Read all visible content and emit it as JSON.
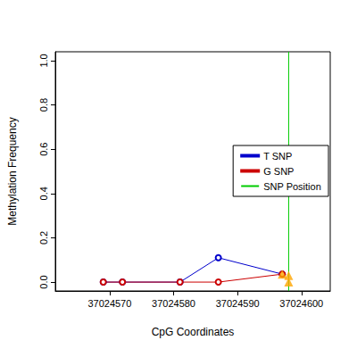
{
  "chart_data": {
    "type": "line",
    "x_label": "CpG Coordinates",
    "y_label": "Methylation Frequency",
    "xlim": [
      37024561.5,
      37024604.5
    ],
    "xticks": [
      37024570,
      37024580,
      37024590,
      37024600
    ],
    "ylim": [
      -0.04,
      1.04
    ],
    "yticks": [
      {
        "value": 0,
        "label": "0.0"
      },
      0.2,
      0.4,
      0.6,
      0.8,
      {
        "value": 1,
        "label": "1.0"
      }
    ],
    "grid": false,
    "legend": "right",
    "series": [
      {
        "name": "T SNP",
        "color": "#0000cc",
        "type": "line",
        "marker": "open_circle",
        "x": [
          37024569,
          37024572,
          37024581,
          37024587,
          37024597
        ],
        "values": [
          0,
          0,
          0,
          0.11,
          0.036
        ]
      },
      {
        "name": "G SNP",
        "color": "#cc0000",
        "type": "line",
        "marker": "open_circle",
        "x": [
          37024569,
          37024572,
          37024581,
          37024587,
          37024597
        ],
        "values": [
          0,
          0,
          0,
          0,
          0.036
        ]
      },
      {
        "name": "SNP Position",
        "color": "#00cc00",
        "type": "vline",
        "x": [
          37024598
        ]
      },
      {
        "color": "#ffa500",
        "type": "scatter",
        "marker": "triangle",
        "x": [
          37024597,
          37024598,
          37024598
        ],
        "values": [
          0.036,
          0.03,
          0
        ]
      }
    ]
  }
}
